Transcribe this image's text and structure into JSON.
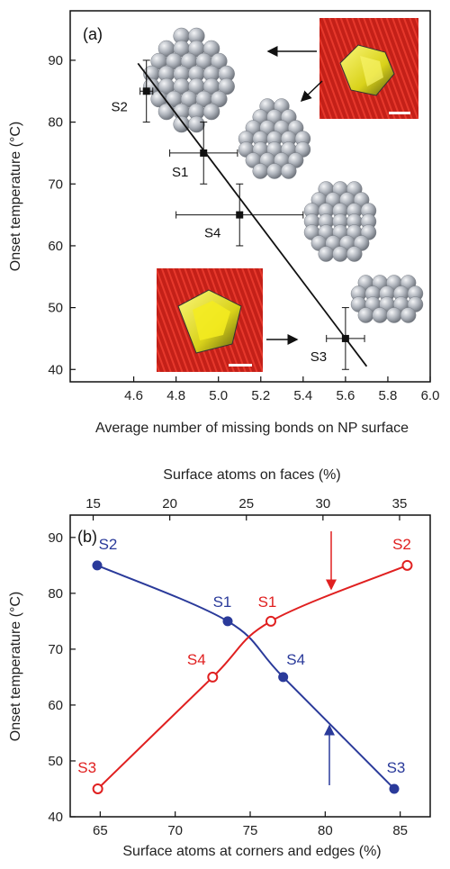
{
  "chart_data": [
    {
      "type": "scatter",
      "panel_label": "(a)",
      "xlabel": "Average number of missing bonds on NP surface",
      "ylabel": "Onset temperature (°C)",
      "xlim": [
        4.3,
        6.0
      ],
      "ylim": [
        38,
        98
      ],
      "xticks": [
        4.6,
        4.8,
        5.0,
        5.2,
        5.4,
        5.6,
        5.8,
        6.0
      ],
      "yticks": [
        40,
        50,
        60,
        70,
        80,
        90
      ],
      "points": [
        {
          "label": "S2",
          "x": 4.66,
          "y": 85,
          "xerr": 0.03,
          "yerr": 5
        },
        {
          "label": "S1",
          "x": 4.93,
          "y": 75,
          "xerr": 0.16,
          "yerr": 5
        },
        {
          "label": "S4",
          "x": 5.1,
          "y": 65,
          "xerr": 0.3,
          "yerr": 5
        },
        {
          "label": "S3",
          "x": 5.6,
          "y": 45,
          "xerr": 0.09,
          "yerr": 5
        }
      ],
      "fit_line": {
        "x": [
          4.62,
          5.7
        ],
        "y": [
          89.5,
          40.5
        ]
      },
      "grid": false
    },
    {
      "type": "line",
      "panel_label": "(b)",
      "xlabel": "Surface atoms at corners and edges (%)",
      "x2label": "Surface atoms on faces (%)",
      "ylabel": "Onset temperature (°C)",
      "xlim": [
        63,
        87
      ],
      "x2lim": [
        13.5,
        37
      ],
      "ylim": [
        40,
        94
      ],
      "xticks": [
        65,
        70,
        75,
        80,
        85
      ],
      "x2ticks": [
        15,
        20,
        25,
        30,
        35
      ],
      "yticks": [
        40,
        50,
        60,
        70,
        80,
        90
      ],
      "series": [
        {
          "color": "#2a3a9a",
          "marker": "filled-circle",
          "axis": "bottom",
          "points": [
            {
              "label": "S2",
              "x": 64.8,
              "y": 85
            },
            {
              "label": "S1",
              "x": 73.5,
              "y": 75
            },
            {
              "label": "S4",
              "x": 77.2,
              "y": 65
            },
            {
              "label": "S3",
              "x": 84.6,
              "y": 45
            }
          ]
        },
        {
          "color": "#e02020",
          "marker": "open-circle",
          "axis": "top",
          "points": [
            {
              "label": "S3",
              "x": 15.3,
              "y": 45
            },
            {
              "label": "S4",
              "x": 22.8,
              "y": 65
            },
            {
              "label": "S1",
              "x": 26.6,
              "y": 75
            },
            {
              "label": "S2",
              "x": 35.5,
              "y": 85
            }
          ]
        }
      ],
      "grid": false
    }
  ],
  "colors": {
    "blue": "#2a3a9a",
    "red": "#e02020",
    "black": "#111111",
    "sphere": "#a8adb6",
    "stm_bg": "#c8201a",
    "stm_particle": "#e6e01a"
  }
}
